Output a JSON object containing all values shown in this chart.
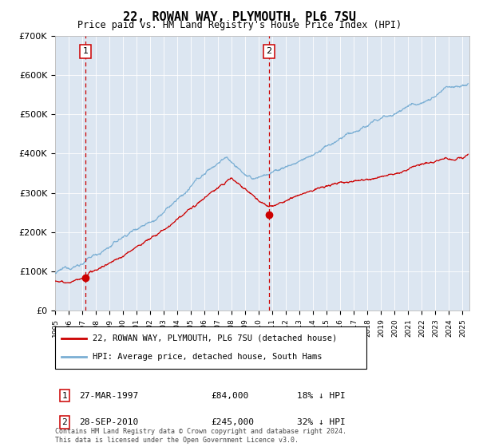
{
  "title": "22, ROWAN WAY, PLYMOUTH, PL6 7SU",
  "subtitle": "Price paid vs. HM Land Registry's House Price Index (HPI)",
  "legend_line1": "22, ROWAN WAY, PLYMOUTH, PL6 7SU (detached house)",
  "legend_line2": "HPI: Average price, detached house, South Hams",
  "sale1_label": "1",
  "sale1_date": "27-MAR-1997",
  "sale1_price": 84000,
  "sale1_pct": "18% ↓ HPI",
  "sale1_x": 1997.23,
  "sale2_label": "2",
  "sale2_date": "28-SEP-2010",
  "sale2_price": 245000,
  "sale2_x": 2010.75,
  "sale2_pct": "32% ↓ HPI",
  "hpi_color": "#7bafd4",
  "price_color": "#cc0000",
  "marker_color": "#cc0000",
  "dashed_color": "#cc0000",
  "background_color": "#dce6f1",
  "plot_bg_color": "#dce6f1",
  "footer": "Contains HM Land Registry data © Crown copyright and database right 2024.\nThis data is licensed under the Open Government Licence v3.0.",
  "ylim": [
    0,
    700000
  ],
  "xlim_start": 1995.0,
  "xlim_end": 2025.5,
  "yticks": [
    0,
    100000,
    200000,
    300000,
    400000,
    500000,
    600000,
    700000
  ],
  "ytick_labels": [
    "£0",
    "£100K",
    "£200K",
    "£300K",
    "£400K",
    "£500K",
    "£600K",
    "£700K"
  ]
}
